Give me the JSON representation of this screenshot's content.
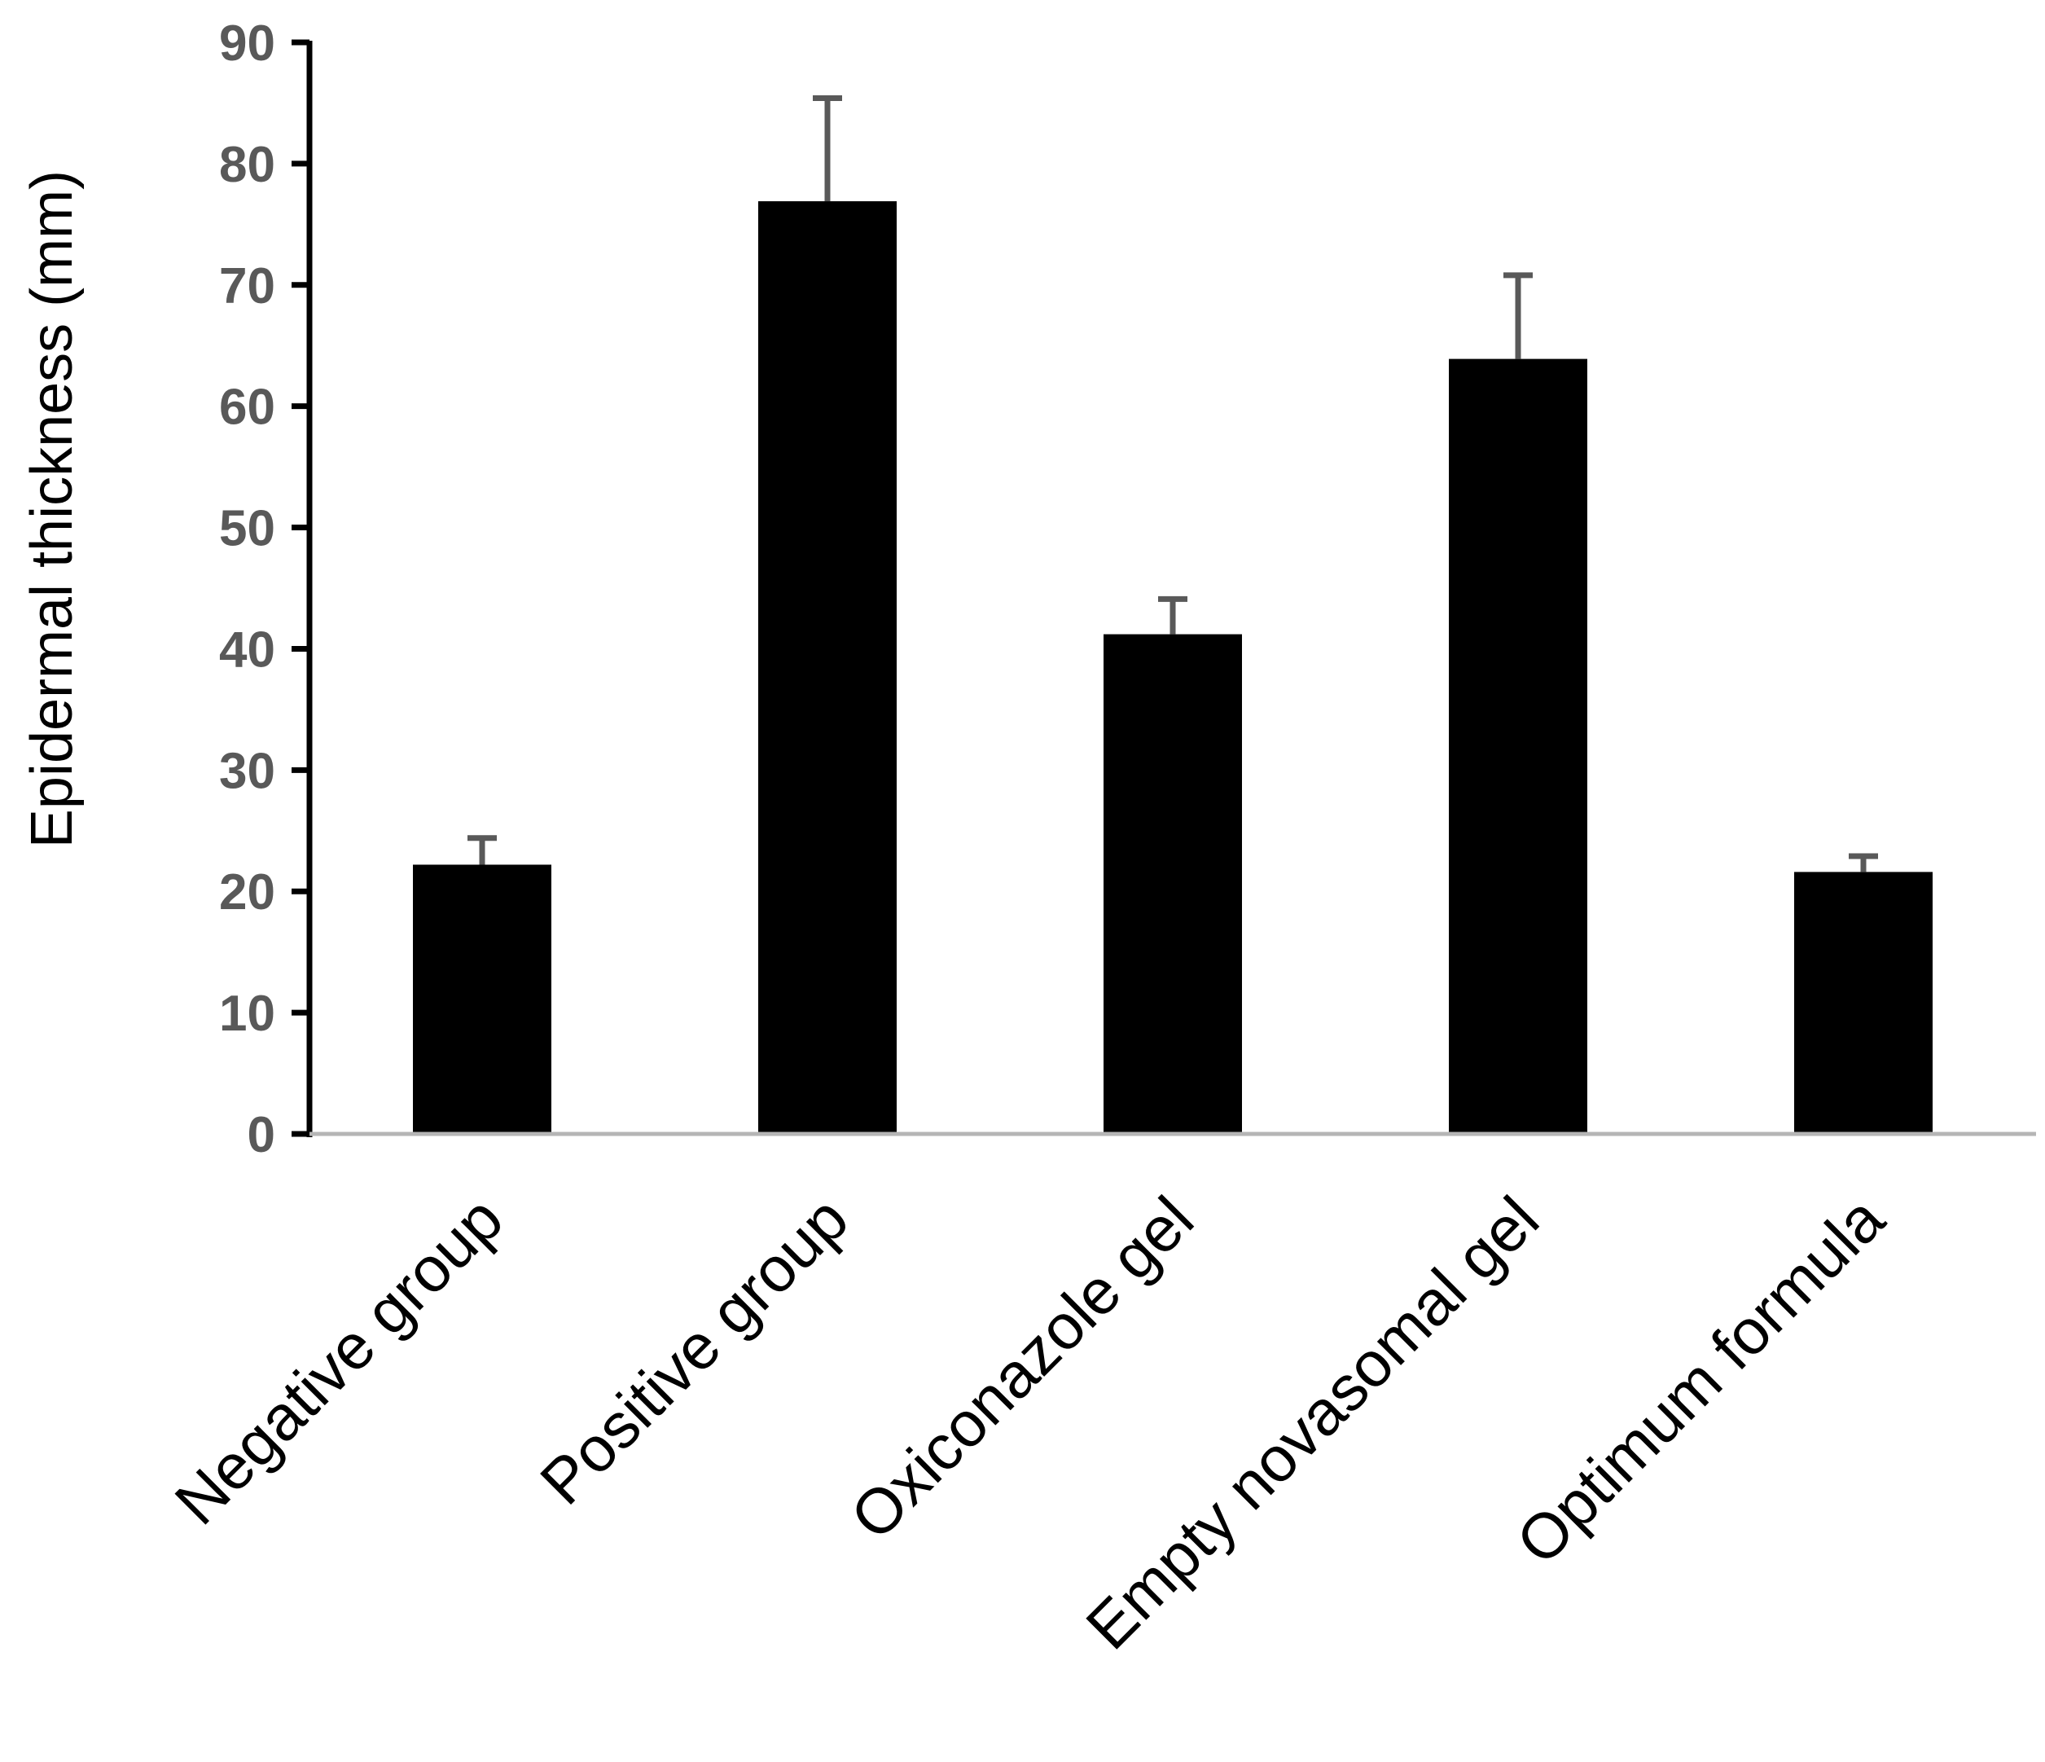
{
  "chart_data": {
    "type": "bar",
    "title": "",
    "xlabel": "",
    "ylabel": "Epidermal thickness (mm)",
    "categories": [
      "Negative group",
      "Positive group",
      "Oxiconazole gel",
      "Empty novasomal gel",
      "Optimum formula"
    ],
    "values": [
      22.2,
      76.9,
      41.2,
      63.9,
      21.6
    ],
    "error_upper": [
      2.2,
      8.5,
      2.9,
      6.9,
      1.3
    ],
    "ylim": [
      0,
      90
    ],
    "yticks": [
      0,
      10,
      20,
      30,
      40,
      50,
      60,
      70,
      80,
      90
    ],
    "grid": false,
    "legend": "none",
    "colors": {
      "bar": "#000000",
      "error_bar": "#595959",
      "axis": "#000000",
      "tick_label": "#595959"
    }
  }
}
